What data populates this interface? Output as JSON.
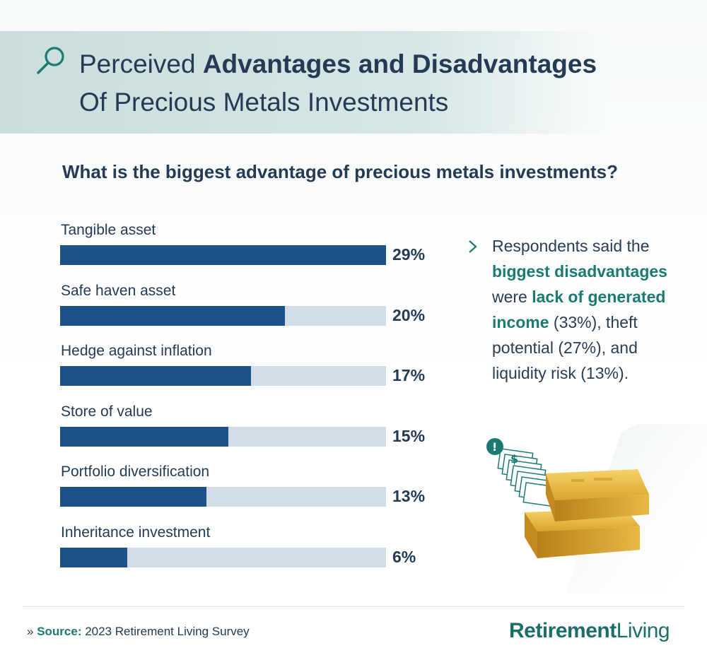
{
  "header": {
    "title_line1_plain": "Perceived ",
    "title_line1_bold": "Advantages and Disadvantages",
    "title_line2": "Of Precious Metals Investments"
  },
  "question": "What is the biggest advantage of precious metals investments?",
  "chart_data": {
    "type": "bar",
    "orientation": "horizontal",
    "categories": [
      "Tangible asset",
      "Safe haven asset",
      "Hedge against inflation",
      "Store of value",
      "Portfolio diversification",
      "Inheritance investment"
    ],
    "values": [
      29,
      20,
      17,
      15,
      13,
      6
    ],
    "value_labels": [
      "29%",
      "20%",
      "17%",
      "15%",
      "13%",
      "6%"
    ],
    "xlim": [
      0,
      29
    ],
    "colors": {
      "fill": "#1d5189",
      "track": "#d2dde8"
    }
  },
  "callout": {
    "p1": "Respondents said the ",
    "h1": "biggest disadvantages",
    "p2": " were ",
    "h2": "lack of generated income",
    "p3": " (33%), theft potential (27%), and liquidity risk (13%)."
  },
  "footer": {
    "source_label": "Source:",
    "source_text": " 2023 Retirement Living Survey",
    "brand_bold": "Retirement",
    "brand_light": "Living"
  },
  "icons": {
    "search": "search-icon",
    "chevron": "chevron-right-icon",
    "source_marker": "double-chevron-icon",
    "alert": "alert-icon",
    "dollar": "dollar-icon"
  },
  "colors": {
    "accent": "#1b7b73",
    "text": "#243a55",
    "bar": "#1d5189",
    "track": "#d2dde8"
  }
}
